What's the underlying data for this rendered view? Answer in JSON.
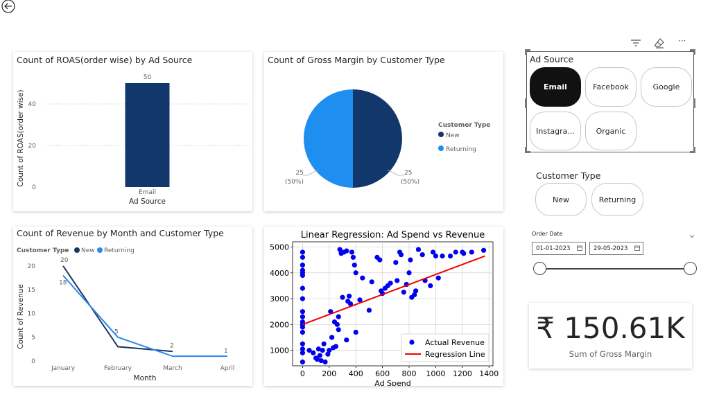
{
  "header": {
    "back_icon": "back-arrow-icon"
  },
  "toolbar": {
    "icons": [
      "filter-icon",
      "eraser-icon",
      "more-options-icon"
    ],
    "more_glyph": "···"
  },
  "roas_chart": {
    "title": "Count of ROAS(order wise) by Ad Source",
    "chart_data": {
      "type": "bar",
      "categories": [
        "Email"
      ],
      "values": [
        50
      ],
      "data_labels": [
        "50"
      ],
      "xlabel": "Ad Source",
      "ylabel": "Count of ROAS(order wise)",
      "ylim": [
        0,
        55
      ],
      "yticks": [
        "0",
        "20",
        "40"
      ],
      "grid": true
    }
  },
  "margin_chart": {
    "title": "Count of Gross Margin by Customer Type",
    "legend_title": "Customer Type",
    "colors": {
      "New": "#12386b",
      "Returning": "#1e8ef0"
    },
    "chart_data": {
      "type": "pie",
      "labels": [
        "New",
        "Returning"
      ],
      "values": [
        25,
        25
      ],
      "data_labels": [
        {
          "value": "25",
          "pct": "(50%)"
        },
        {
          "value": "25",
          "pct": "(50%)"
        }
      ],
      "legend_position": "right"
    }
  },
  "revenue_chart": {
    "title": "Count of Revenue by Month and Customer Type",
    "legend_title": "Customer Type",
    "colors": {
      "New": "#1a3560",
      "Returning": "#2a8af0"
    },
    "chart_data": {
      "type": "line",
      "categories": [
        "January",
        "February",
        "March",
        "April"
      ],
      "series": [
        {
          "name": "New",
          "values": [
            20,
            3,
            2,
            null
          ],
          "labels": [
            "20",
            "",
            "2",
            ""
          ]
        },
        {
          "name": "Returning",
          "values": [
            18,
            5,
            1,
            1
          ],
          "labels": [
            "18",
            "5",
            "",
            "1"
          ]
        }
      ],
      "xlabel": "Month",
      "ylabel": "Count of Revenue",
      "ylim": [
        0,
        21
      ],
      "yticks": [
        "0",
        "5",
        "10",
        "15",
        "20"
      ],
      "legend_position": "top-left"
    }
  },
  "regression_chart": {
    "title": "Linear Regression: Ad Spend vs Revenue",
    "colors": {
      "points": "#0000ee",
      "line": "#ee0000"
    },
    "chart_data": {
      "type": "scatter",
      "title": "Linear Regression: Ad Spend vs Revenue",
      "xlabel": "Ad Spend",
      "xlim": [
        -75,
        1430
      ],
      "ylim": [
        400,
        5200
      ],
      "xticks": [
        0,
        200,
        400,
        600,
        800,
        1000,
        1200,
        1400
      ],
      "yticks": [
        1000,
        2000,
        3000,
        4000,
        5000
      ],
      "series": [
        {
          "name": "Actual Revenue",
          "points": [
            [
              0,
              4800
            ],
            [
              0,
              4600
            ],
            [
              0,
              4300
            ],
            [
              0,
              4100
            ],
            [
              0,
              4000
            ],
            [
              0,
              3900
            ],
            [
              0,
              3400
            ],
            [
              0,
              3000
            ],
            [
              0,
              2500
            ],
            [
              0,
              2300
            ],
            [
              0,
              2100
            ],
            [
              0,
              2000
            ],
            [
              0,
              1900
            ],
            [
              0,
              1700
            ],
            [
              0,
              1250
            ],
            [
              0,
              1050
            ],
            [
              0,
              900
            ],
            [
              0,
              550
            ],
            [
              50,
              1000
            ],
            [
              80,
              900
            ],
            [
              100,
              700
            ],
            [
              110,
              650
            ],
            [
              120,
              1050
            ],
            [
              130,
              800
            ],
            [
              140,
              600
            ],
            [
              150,
              1000
            ],
            [
              160,
              1250
            ],
            [
              170,
              550
            ],
            [
              190,
              850
            ],
            [
              200,
              1000
            ],
            [
              210,
              2500
            ],
            [
              220,
              1500
            ],
            [
              230,
              1100
            ],
            [
              240,
              2100
            ],
            [
              250,
              1150
            ],
            [
              260,
              2000
            ],
            [
              270,
              1800
            ],
            [
              270,
              2300
            ],
            [
              280,
              4900
            ],
            [
              290,
              4750
            ],
            [
              300,
              3050
            ],
            [
              310,
              4800
            ],
            [
              330,
              4850
            ],
            [
              330,
              1400
            ],
            [
              340,
              2900
            ],
            [
              350,
              3100
            ],
            [
              360,
              2800
            ],
            [
              370,
              4800
            ],
            [
              380,
              4600
            ],
            [
              390,
              4300
            ],
            [
              400,
              4000
            ],
            [
              400,
              1700
            ],
            [
              430,
              2950
            ],
            [
              450,
              3800
            ],
            [
              500,
              2550
            ],
            [
              520,
              3650
            ],
            [
              560,
              4600
            ],
            [
              580,
              4500
            ],
            [
              590,
              3300
            ],
            [
              600,
              3200
            ],
            [
              620,
              3400
            ],
            [
              640,
              3500
            ],
            [
              660,
              3600
            ],
            [
              700,
              4400
            ],
            [
              710,
              3700
            ],
            [
              730,
              4800
            ],
            [
              740,
              4700
            ],
            [
              760,
              3250
            ],
            [
              780,
              3550
            ],
            [
              800,
              4000
            ],
            [
              810,
              4500
            ],
            [
              820,
              3050
            ],
            [
              840,
              3150
            ],
            [
              850,
              3300
            ],
            [
              870,
              4900
            ],
            [
              900,
              4700
            ],
            [
              920,
              3700
            ],
            [
              960,
              3500
            ],
            [
              980,
              4800
            ],
            [
              1000,
              4650
            ],
            [
              1020,
              3800
            ],
            [
              1050,
              4650
            ],
            [
              1110,
              4650
            ],
            [
              1150,
              4800
            ],
            [
              1200,
              4800
            ],
            [
              1210,
              4750
            ],
            [
              1270,
              4800
            ],
            [
              1360,
              4870
            ]
          ]
        },
        {
          "name": "Regression Line",
          "points": [
            [
              0,
              2000
            ],
            [
              1370,
              4650
            ]
          ]
        }
      ],
      "legend_position": "bottom-right"
    }
  },
  "ad_source_slicer": {
    "title": "Ad Source",
    "options": [
      {
        "label": "Email",
        "selected": true
      },
      {
        "label": "Facebook",
        "selected": false
      },
      {
        "label": "Google",
        "selected": false
      },
      {
        "label": "Instagra...",
        "selected": false
      },
      {
        "label": "Organic",
        "selected": false
      }
    ]
  },
  "customer_type_slicer": {
    "title": "Customer Type",
    "options": [
      {
        "label": "New"
      },
      {
        "label": "Returning"
      }
    ]
  },
  "date_slicer": {
    "title": "Order Date",
    "start": "01-01-2023",
    "end": "29-05-2023",
    "calendar_icon": "calendar-icon",
    "range_start_fraction": 0,
    "range_end_fraction": 1
  },
  "kpi_card": {
    "value": "₹ 150.61K",
    "label": "Sum of Gross Margin"
  }
}
